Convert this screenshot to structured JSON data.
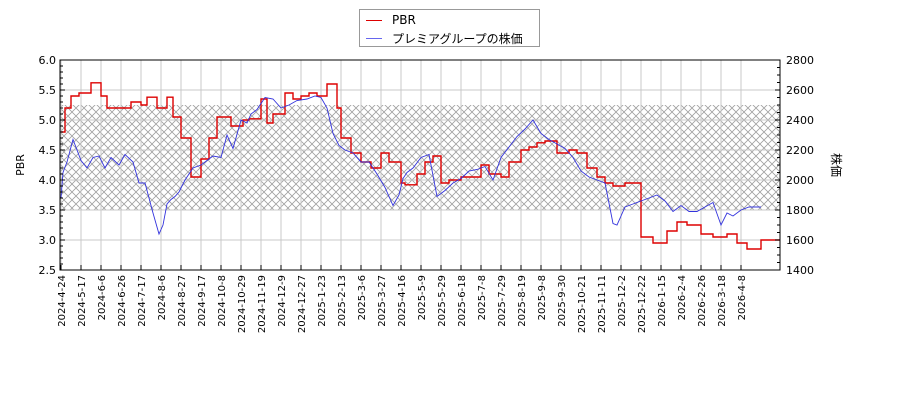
{
  "chart_data": {
    "type": "line",
    "title": "",
    "xlabel": "",
    "ylabel_left": "PBR",
    "ylabel_right": "株価",
    "ylim_left": [
      2.5,
      6.0
    ],
    "ylim_right": [
      1400,
      2800
    ],
    "yticks_left": [
      "6.0",
      "5.5",
      "5.0",
      "4.5",
      "4.0",
      "3.5",
      "3.0",
      "2.5"
    ],
    "yticks_right": [
      "2800",
      "2600",
      "2400",
      "2200",
      "2000",
      "1800",
      "1600",
      "1400"
    ],
    "xticks": [
      "2024-4-24",
      "2024-5-17",
      "2024-6-6",
      "2024-6-26",
      "2024-7-17",
      "2024-8-6",
      "2024-8-27",
      "2024-9-17",
      "2024-10-8",
      "2024-10-29",
      "2024-11-19",
      "2024-12-9",
      "2024-12-27",
      "2025-1-23",
      "2025-2-13",
      "2025-3-6",
      "2025-3-27",
      "2025-4-16",
      "2025-5-9",
      "2025-5-29",
      "2025-6-18",
      "2025-7-8",
      "2025-7-29",
      "2025-8-19",
      "2025-9-8",
      "2025-9-30",
      "2025-10-21",
      "2025-11-11",
      "2025-12-2",
      "2025-12-22",
      "2026-1-15",
      "2026-2-4",
      "2026-2-26",
      "2026-3-18",
      "2026-4-8"
    ],
    "grid": true,
    "legend_position": "top-center",
    "shaded_band": {
      "axis": "left",
      "from": 3.5,
      "to": 5.25,
      "style": "crosshatch"
    },
    "series": [
      {
        "name": "PBR",
        "axis": "left",
        "color": "#dd0000",
        "x_index": [
          0,
          0.2,
          0.5,
          0.9,
          1.5,
          2.0,
          2.3,
          2.7,
          3.5,
          4.0,
          4.3,
          4.8,
          5.3,
          5.6,
          6.0,
          6.5,
          7.0,
          7.4,
          7.8,
          8.5,
          9.1,
          9.4,
          9.7,
          10.0,
          10.3,
          10.6,
          11.2,
          11.6,
          12.0,
          12.4,
          12.8,
          13.3,
          13.8,
          14.0,
          14.5,
          15.0,
          15.5,
          16.0,
          16.4,
          17.0,
          17.2,
          17.8,
          18.2,
          18.6,
          19.0,
          19.4,
          20.0,
          20.4,
          21.0,
          21.4,
          22.0,
          22.4,
          23.0,
          23.4,
          23.8,
          24.2,
          24.8,
          25.4,
          25.8,
          26.3,
          26.8,
          27.2,
          27.6,
          28.2,
          29.0,
          29.6,
          30.3,
          30.8,
          31.3,
          32.0,
          32.6,
          33.3,
          33.8,
          34.3,
          35.0
        ],
        "values": [
          4.8,
          5.2,
          5.4,
          5.45,
          5.62,
          5.4,
          5.2,
          5.2,
          5.3,
          5.25,
          5.38,
          5.2,
          5.38,
          5.05,
          4.7,
          4.05,
          4.35,
          4.7,
          5.05,
          4.9,
          5.0,
          5.02,
          5.02,
          5.35,
          4.95,
          5.1,
          5.45,
          5.35,
          5.4,
          5.45,
          5.4,
          5.6,
          5.2,
          4.7,
          4.45,
          4.3,
          4.2,
          4.45,
          4.3,
          3.95,
          3.92,
          4.1,
          4.3,
          4.4,
          3.95,
          4.0,
          4.05,
          4.05,
          4.25,
          4.1,
          4.05,
          4.3,
          4.5,
          4.55,
          4.62,
          4.65,
          4.45,
          4.5,
          4.45,
          4.2,
          4.05,
          3.95,
          3.9,
          3.95,
          3.05,
          2.95,
          3.15,
          3.3,
          3.25,
          3.1,
          3.05,
          3.1,
          2.95,
          2.85,
          3.0
        ]
      },
      {
        "name": "プレミアグループの株価",
        "axis": "right",
        "color": "#3333dd",
        "x_index": [
          0,
          0.1,
          0.3,
          0.6,
          0.8,
          1.0,
          1.3,
          1.6,
          1.9,
          2.2,
          2.5,
          2.9,
          3.2,
          3.6,
          3.9,
          4.2,
          4.6,
          4.9,
          5.1,
          5.3,
          5.5,
          5.7,
          5.9,
          6.2,
          6.6,
          7.0,
          7.3,
          7.6,
          8.0,
          8.3,
          8.6,
          9.0,
          9.3,
          9.5,
          9.8,
          10.2,
          10.6,
          11.0,
          11.4,
          11.8,
          12.3,
          12.7,
          13.0,
          13.3,
          13.6,
          13.9,
          14.2,
          14.6,
          15.0,
          15.4,
          15.8,
          16.2,
          16.6,
          16.9,
          17.1,
          17.3,
          17.6,
          18.0,
          18.4,
          18.8,
          19.2,
          19.6,
          20.0,
          20.4,
          20.8,
          21.2,
          21.6,
          22.0,
          22.4,
          22.8,
          23.2,
          23.6,
          24.0,
          24.4,
          24.8,
          25.2,
          25.6,
          26.0,
          26.4,
          26.8,
          27.2,
          27.6,
          27.8,
          28.2,
          28.6,
          29.0,
          29.4,
          29.8,
          30.2,
          30.6,
          31.0,
          31.4,
          31.8,
          32.2,
          32.6,
          33.0,
          33.3,
          33.6,
          34.0,
          34.4,
          34.8,
          35.0
        ],
        "values": [
          1880,
          2050,
          2120,
          2270,
          2200,
          2130,
          2080,
          2150,
          2160,
          2080,
          2150,
          2100,
          2170,
          2120,
          1980,
          1980,
          1780,
          1640,
          1700,
          1840,
          1870,
          1890,
          1920,
          2000,
          2080,
          2100,
          2130,
          2160,
          2150,
          2300,
          2210,
          2400,
          2380,
          2440,
          2470,
          2550,
          2540,
          2480,
          2500,
          2530,
          2540,
          2560,
          2550,
          2480,
          2310,
          2230,
          2200,
          2180,
          2120,
          2120,
          2040,
          1950,
          1830,
          1900,
          2010,
          2050,
          2080,
          2150,
          2170,
          1890,
          1930,
          1980,
          2010,
          2060,
          2070,
          2090,
          2000,
          2150,
          2220,
          2290,
          2340,
          2400,
          2310,
          2270,
          2240,
          2210,
          2150,
          2060,
          2020,
          2000,
          1980,
          1710,
          1700,
          1820,
          1840,
          1860,
          1880,
          1900,
          1860,
          1790,
          1830,
          1790,
          1790,
          1820,
          1850,
          1700,
          1780,
          1760,
          1800,
          1820,
          1820,
          1820
        ]
      }
    ]
  },
  "legend": {
    "items": [
      {
        "label": "PBR",
        "color": "#dd0000"
      },
      {
        "label": "プレミアグループの株価",
        "color": "#6666ee"
      }
    ]
  },
  "axes": {
    "left_title": "PBR",
    "right_title": "株価"
  }
}
